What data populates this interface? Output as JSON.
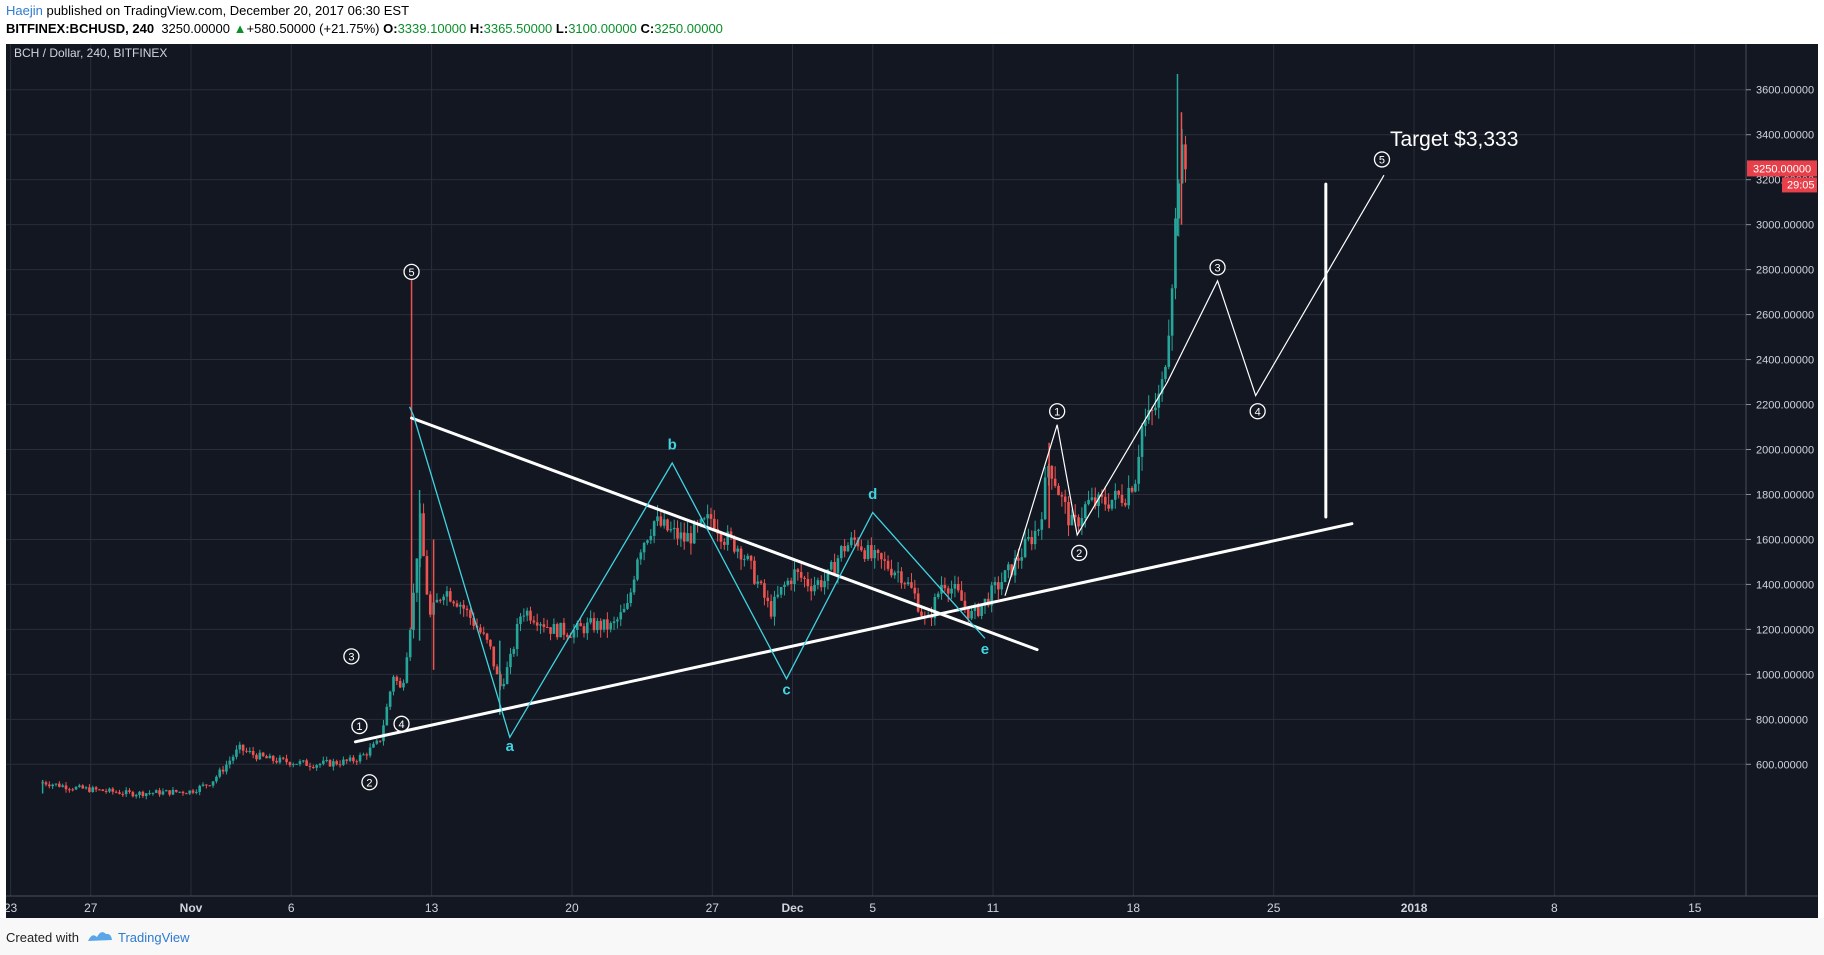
{
  "header": {
    "author": "Haejin",
    "published_text": " published on TradingView.com, December 20, 2017 06:30 EST",
    "symbol": "BITFINEX:BCHUSD, 240",
    "last_price": "3250.00000",
    "change_arrow": "▲",
    "change": "+580.50000 (+21.75%)",
    "open_label": "O:",
    "open": "3339.10000",
    "high_label": "H:",
    "high": "3365.50000",
    "low_label": "L:",
    "low": "3100.00000",
    "close_label": "C:",
    "close": "3250.00000"
  },
  "footer": {
    "created_with": "Created with",
    "brand": "TradingView",
    "logo_icon": "tradingview-logo-icon"
  },
  "chart_data": {
    "type": "candlestick",
    "title": "BCH / Dollar, 240, BITFINEX",
    "ylim": [
      460,
      3760
    ],
    "y_ticks": [
      "600.00000",
      "800.00000",
      "1000.00000",
      "1200.00000",
      "1400.00000",
      "1600.00000",
      "1800.00000",
      "2000.00000",
      "2200.00000",
      "2400.00000",
      "2600.00000",
      "2800.00000",
      "3000.00000",
      "3200.00000",
      "3400.00000",
      "3600.00000"
    ],
    "y_tick_values": [
      600,
      800,
      1000,
      1200,
      1400,
      1600,
      1800,
      2000,
      2200,
      2400,
      2600,
      2800,
      3000,
      3200,
      3400,
      3600
    ],
    "x_ticks": [
      {
        "label": "23",
        "day": -9
      },
      {
        "label": "27",
        "day": -5
      },
      {
        "label": "Nov",
        "day": 0
      },
      {
        "label": "6",
        "day": 5
      },
      {
        "label": "13",
        "day": 12
      },
      {
        "label": "20",
        "day": 19
      },
      {
        "label": "27",
        "day": 26
      },
      {
        "label": "Dec",
        "day": 30
      },
      {
        "label": "5",
        "day": 34
      },
      {
        "label": "11",
        "day": 40
      },
      {
        "label": "18",
        "day": 47
      },
      {
        "label": "25",
        "day": 54
      },
      {
        "label": "2018",
        "day": 61
      },
      {
        "label": "8",
        "day": 68
      },
      {
        "label": "15",
        "day": 75
      }
    ],
    "x_ticks_bold": [
      "Nov",
      "Dec",
      "2018"
    ],
    "current_price_label": "3250.00000",
    "countdown_label": "29:05",
    "colors": {
      "background": "#131722",
      "grid": "#2a2e39",
      "up": "#26a69a",
      "down": "#ef5350",
      "wave": "#ffffff",
      "abc": "#3fd4e0",
      "price_tag": "#e8404a"
    },
    "price_path": [
      {
        "day": -7.4,
        "price": 520
      },
      {
        "day": -5.8,
        "price": 495
      },
      {
        "day": -3,
        "price": 470
      },
      {
        "day": 0,
        "price": 480
      },
      {
        "day": 1,
        "price": 520
      },
      {
        "day": 1.6,
        "price": 580
      },
      {
        "day": 2.4,
        "price": 670
      },
      {
        "day": 3.2,
        "price": 640
      },
      {
        "day": 4,
        "price": 620
      },
      {
        "day": 5,
        "price": 610
      },
      {
        "day": 6,
        "price": 600
      },
      {
        "day": 7,
        "price": 605
      },
      {
        "day": 8,
        "price": 615
      },
      {
        "day": 8.6,
        "price": 640
      },
      {
        "day": 9.4,
        "price": 700
      },
      {
        "day": 9.7,
        "price": 820
      },
      {
        "day": 10.1,
        "price": 1000
      },
      {
        "day": 10.5,
        "price": 920
      },
      {
        "day": 10.9,
        "price": 1200
      },
      {
        "day": 11.1,
        "price": 1350
      },
      {
        "day": 11.4,
        "price": 1700
      },
      {
        "day": 11.9,
        "price": 1250
      },
      {
        "day": 12.6,
        "price": 1380
      },
      {
        "day": 13.4,
        "price": 1320
      },
      {
        "day": 14.2,
        "price": 1220
      },
      {
        "day": 14.9,
        "price": 1120
      },
      {
        "day": 15.4,
        "price": 940
      },
      {
        "day": 15.9,
        "price": 1050
      },
      {
        "day": 16.5,
        "price": 1290
      },
      {
        "day": 17.3,
        "price": 1250
      },
      {
        "day": 18,
        "price": 1200
      },
      {
        "day": 19,
        "price": 1190
      },
      {
        "day": 20,
        "price": 1220
      },
      {
        "day": 21,
        "price": 1210
      },
      {
        "day": 21.8,
        "price": 1300
      },
      {
        "day": 22.3,
        "price": 1550
      },
      {
        "day": 23.1,
        "price": 1680
      },
      {
        "day": 23.8,
        "price": 1640
      },
      {
        "day": 24.6,
        "price": 1600
      },
      {
        "day": 25.3,
        "price": 1640
      },
      {
        "day": 26,
        "price": 1700
      },
      {
        "day": 26.6,
        "price": 1610
      },
      {
        "day": 27.4,
        "price": 1560
      },
      {
        "day": 28.2,
        "price": 1420
      },
      {
        "day": 28.9,
        "price": 1280
      },
      {
        "day": 29.5,
        "price": 1380
      },
      {
        "day": 30.1,
        "price": 1450
      },
      {
        "day": 30.9,
        "price": 1400
      },
      {
        "day": 31.7,
        "price": 1420
      },
      {
        "day": 32.5,
        "price": 1560
      },
      {
        "day": 33.2,
        "price": 1600
      },
      {
        "day": 33.9,
        "price": 1520
      },
      {
        "day": 34.6,
        "price": 1490
      },
      {
        "day": 35.4,
        "price": 1450
      },
      {
        "day": 36.1,
        "price": 1350
      },
      {
        "day": 36.7,
        "price": 1220
      },
      {
        "day": 37.5,
        "price": 1420
      },
      {
        "day": 38.2,
        "price": 1360
      },
      {
        "day": 38.9,
        "price": 1260
      },
      {
        "day": 39.5,
        "price": 1310
      },
      {
        "day": 40.2,
        "price": 1390
      },
      {
        "day": 41,
        "price": 1480
      },
      {
        "day": 41.7,
        "price": 1580
      },
      {
        "day": 42.3,
        "price": 1660
      },
      {
        "day": 42.8,
        "price": 1950
      },
      {
        "day": 43.4,
        "price": 1780
      },
      {
        "day": 44,
        "price": 1650
      },
      {
        "day": 44.7,
        "price": 1760
      },
      {
        "day": 45.3,
        "price": 1760
      },
      {
        "day": 46,
        "price": 1780
      },
      {
        "day": 46.6,
        "price": 1800
      },
      {
        "day": 47.1,
        "price": 1880
      },
      {
        "day": 47.4,
        "price": 2100
      },
      {
        "day": 47.9,
        "price": 2150
      },
      {
        "day": 48.4,
        "price": 2250
      },
      {
        "day": 48.8,
        "price": 2600
      },
      {
        "day": 49.1,
        "price": 3000
      },
      {
        "day": 49.3,
        "price": 3300
      },
      {
        "day": 49.6,
        "price": 3250
      }
    ],
    "spikes": [
      {
        "day": -7.4,
        "high": 530,
        "low": 470
      },
      {
        "day": 11.0,
        "high": 2780,
        "low": 1200
      },
      {
        "day": 11.4,
        "high": 1820,
        "low": 1150
      },
      {
        "day": 12.1,
        "high": 1600,
        "low": 1020
      },
      {
        "day": 15.4,
        "high": 1150,
        "low": 820
      },
      {
        "day": 42.8,
        "high": 2030,
        "low": 1650
      },
      {
        "day": 49.2,
        "high": 3670,
        "low": 2950
      },
      {
        "day": 49.4,
        "high": 3500,
        "low": 3000
      }
    ],
    "lines": [
      {
        "name": "triangle-upper-line",
        "from": {
          "day": 11,
          "price": 2140
        },
        "to": {
          "day": 42.2,
          "price": 1110
        },
        "color": "#ffffff",
        "width": 3
      },
      {
        "name": "triangle-lower-line",
        "from": {
          "day": 8.2,
          "price": 700
        },
        "to": {
          "day": 57.9,
          "price": 1670
        },
        "color": "#ffffff",
        "width": 3
      },
      {
        "name": "target-vertical-line",
        "from": {
          "day": 56.6,
          "price": 3180
        },
        "to": {
          "day": 56.6,
          "price": 1700
        },
        "color": "#ffffff",
        "width": 3
      }
    ],
    "abcde_path": [
      {
        "day": 10.9,
        "price": 2190
      },
      {
        "day": 11.1,
        "price": 2150
      },
      {
        "day": 15.9,
        "price": 720
      },
      {
        "day": 24.0,
        "price": 1940
      },
      {
        "day": 29.7,
        "price": 980
      },
      {
        "day": 34.0,
        "price": 1720
      },
      {
        "day": 39.6,
        "price": 1160
      }
    ],
    "wave_projection": [
      {
        "day": 40.6,
        "price": 1350
      },
      {
        "day": 43.2,
        "price": 2110
      },
      {
        "day": 44.2,
        "price": 1620
      },
      {
        "day": 48.7,
        "price": 2300
      },
      {
        "day": 51.2,
        "price": 2750
      },
      {
        "day": 53.1,
        "price": 2240
      },
      {
        "day": 59.5,
        "price": 3220
      }
    ],
    "wave_labels": [
      {
        "text": "5",
        "day": 11,
        "price": 2790
      },
      {
        "text": "1",
        "day": 8.4,
        "price": 770
      },
      {
        "text": "2",
        "day": 8.9,
        "price": 520
      },
      {
        "text": "3",
        "day": 8.0,
        "price": 1080
      },
      {
        "text": "4",
        "day": 10.5,
        "price": 780
      },
      {
        "text": "1",
        "day": 43.2,
        "price": 2170
      },
      {
        "text": "2",
        "day": 44.3,
        "price": 1540
      },
      {
        "text": "3",
        "day": 51.2,
        "price": 2810
      },
      {
        "text": "4",
        "day": 53.2,
        "price": 2170
      },
      {
        "text": "5",
        "day": 59.4,
        "price": 3290
      }
    ],
    "abc_labels": [
      {
        "text": "a",
        "day": 15.9,
        "price": 660
      },
      {
        "text": "b",
        "day": 24.0,
        "price": 2000
      },
      {
        "text": "c",
        "day": 29.7,
        "price": 910
      },
      {
        "text": "d",
        "day": 34.0,
        "price": 1780
      },
      {
        "text": "e",
        "day": 39.6,
        "price": 1090
      }
    ],
    "annotation": {
      "text": "Target $3,333",
      "day": 59.8,
      "price": 3350
    }
  }
}
